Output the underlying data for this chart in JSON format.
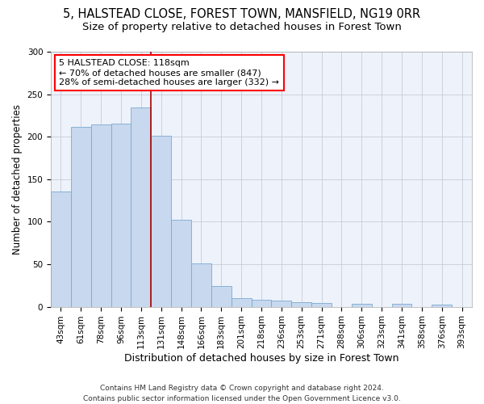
{
  "title1": "5, HALSTEAD CLOSE, FOREST TOWN, MANSFIELD, NG19 0RR",
  "title2": "Size of property relative to detached houses in Forest Town",
  "xlabel": "Distribution of detached houses by size in Forest Town",
  "ylabel": "Number of detached properties",
  "categories": [
    "43sqm",
    "61sqm",
    "78sqm",
    "96sqm",
    "113sqm",
    "131sqm",
    "148sqm",
    "166sqm",
    "183sqm",
    "201sqm",
    "218sqm",
    "236sqm",
    "253sqm",
    "271sqm",
    "288sqm",
    "306sqm",
    "323sqm",
    "341sqm",
    "358sqm",
    "376sqm",
    "393sqm"
  ],
  "values": [
    136,
    212,
    214,
    215,
    234,
    201,
    102,
    51,
    24,
    10,
    8,
    7,
    5,
    4,
    0,
    3,
    0,
    3,
    0,
    2,
    0
  ],
  "bar_color": "#c8d8ee",
  "bar_edgecolor": "#7aaad0",
  "vline_index": 4,
  "annotation_text": "5 HALSTEAD CLOSE: 118sqm\n← 70% of detached houses are smaller (847)\n28% of semi-detached houses are larger (332) →",
  "annotation_box_color": "white",
  "annotation_box_edgecolor": "red",
  "vline_color": "#aa0000",
  "ylim": [
    0,
    300
  ],
  "yticks": [
    0,
    50,
    100,
    150,
    200,
    250,
    300
  ],
  "footnote": "Contains HM Land Registry data © Crown copyright and database right 2024.\nContains public sector information licensed under the Open Government Licence v3.0.",
  "background_color": "#ffffff",
  "plot_bg_color": "#eef2fb",
  "grid_color": "#c8ccd8",
  "title_fontsize": 10.5,
  "subtitle_fontsize": 9.5,
  "xlabel_fontsize": 9,
  "ylabel_fontsize": 8.5,
  "tick_fontsize": 7.5,
  "annot_fontsize": 8,
  "footnote_fontsize": 6.5
}
